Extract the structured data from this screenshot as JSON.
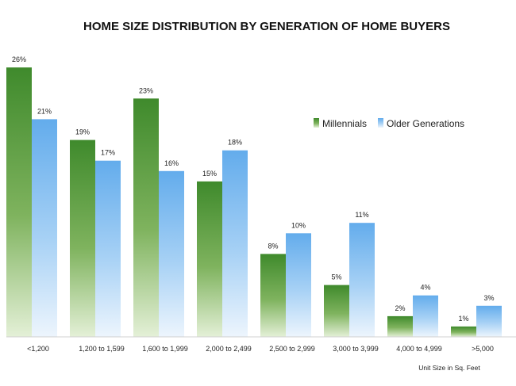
{
  "chart_data": {
    "type": "bar",
    "title": "HOME SIZE DISTRIBUTION BY GENERATION OF HOME BUYERS",
    "xlabel": "Unit Size in Sq. Feet",
    "ylabel": "",
    "ylim": [
      0,
      27
    ],
    "grid": false,
    "legend_position": "right",
    "categories": [
      "<1,200",
      "1,200 to 1,599",
      "1,600 to 1,999",
      "2,000 to 2,499",
      "2,500 to 2,999",
      "3,000 to 3,999",
      "4,000 to 4,999",
      ">5,000"
    ],
    "series": [
      {
        "name": "Millennials",
        "values": [
          26,
          19,
          23,
          15,
          8,
          5,
          2,
          1
        ],
        "labels": [
          "26%",
          "19%",
          "23%",
          "15%",
          "8%",
          "5%",
          "2%",
          "1%"
        ],
        "color": "#4f8f32"
      },
      {
        "name": "Older Generations",
        "values": [
          21,
          17,
          16,
          18,
          10,
          11,
          4,
          3
        ],
        "labels": [
          "21%",
          "17%",
          "16%",
          "18%",
          "10%",
          "11%",
          "4%",
          "3%"
        ],
        "color": "#74b6ec"
      }
    ]
  }
}
